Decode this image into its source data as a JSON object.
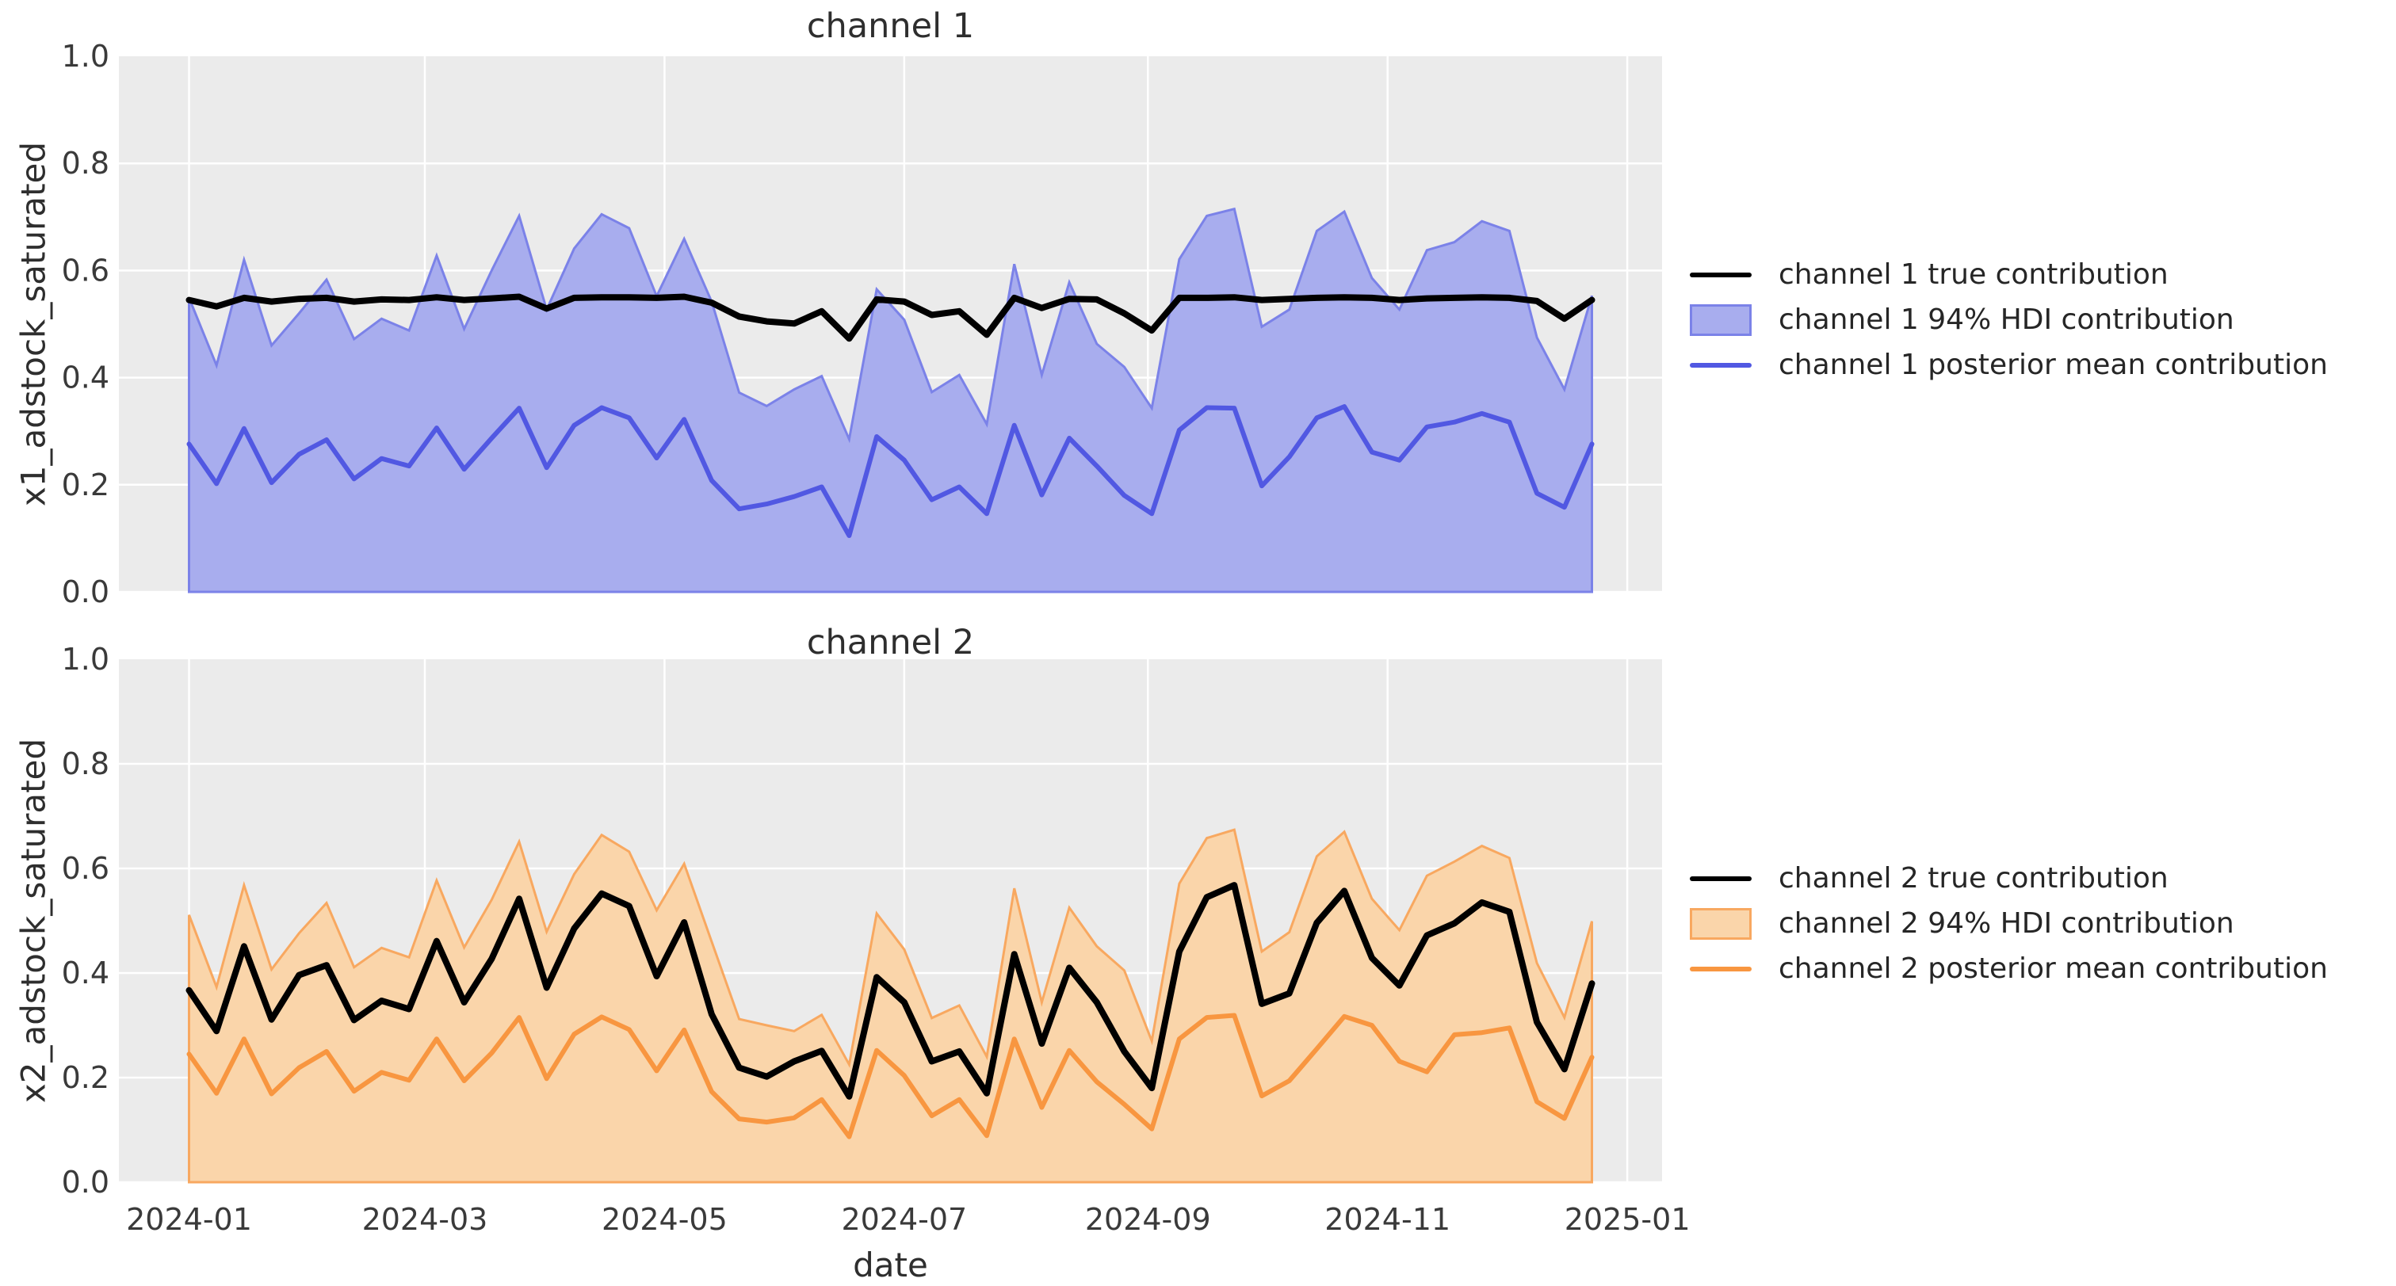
{
  "style": {
    "figure_bg": "#ffffff",
    "plot_bg": "#ebebeb",
    "grid_color": "#ffffff",
    "title_color": "#2e2e2e",
    "tick_label_color": "#3a3a3a",
    "true_line_color": "#000000",
    "ch1_line_color": "#5158e2",
    "ch1_fill_color": "#a8adee",
    "ch1_edge_color": "#7b82e8",
    "ch2_line_color": "#f89640",
    "ch2_fill_color": "#fad5aa",
    "ch2_edge_color": "#f8a860"
  },
  "xlabel": "date",
  "chart_data": [
    {
      "type": "line",
      "title": "channel 1",
      "xlabel": "date",
      "ylabel": "x1_adstock_saturated",
      "ylim": [
        0.0,
        1.0
      ],
      "grid": true,
      "legend_position": "center right outside",
      "y_ticks": [
        "0.0",
        "0.2",
        "0.4",
        "0.6",
        "0.8",
        "1.0"
      ],
      "x_tick_labels": [
        "2024-01",
        "2024-03",
        "2024-05",
        "2024-07",
        "2024-09",
        "2024-11",
        "2025-01"
      ],
      "x_tick_days": [
        0,
        60,
        121,
        182,
        244,
        305,
        366
      ],
      "show_x_tick_labels": false,
      "x": [
        "2024-01-01",
        "2024-01-08",
        "2024-01-15",
        "2024-01-22",
        "2024-01-29",
        "2024-02-05",
        "2024-02-12",
        "2024-02-19",
        "2024-02-26",
        "2024-03-04",
        "2024-03-11",
        "2024-03-18",
        "2024-03-25",
        "2024-04-01",
        "2024-04-08",
        "2024-04-15",
        "2024-04-22",
        "2024-04-29",
        "2024-05-06",
        "2024-05-13",
        "2024-05-20",
        "2024-05-27",
        "2024-06-03",
        "2024-06-10",
        "2024-06-17",
        "2024-06-24",
        "2024-07-01",
        "2024-07-08",
        "2024-07-15",
        "2024-07-22",
        "2024-07-29",
        "2024-08-05",
        "2024-08-12",
        "2024-08-19",
        "2024-08-26",
        "2024-09-02",
        "2024-09-09",
        "2024-09-16",
        "2024-09-23",
        "2024-09-30",
        "2024-10-07",
        "2024-10-14",
        "2024-10-21",
        "2024-10-28",
        "2024-11-04",
        "2024-11-11",
        "2024-11-18",
        "2024-11-25",
        "2024-12-02",
        "2024-12-09",
        "2024-12-16",
        "2024-12-23"
      ],
      "series": [
        {
          "name": "channel 1 true contribution",
          "kind": "line",
          "color": "#000000",
          "width": 8,
          "values": [
            0.545,
            0.533,
            0.549,
            0.542,
            0.547,
            0.549,
            0.542,
            0.546,
            0.545,
            0.55,
            0.545,
            0.548,
            0.551,
            0.529,
            0.549,
            0.55,
            0.55,
            0.549,
            0.551,
            0.54,
            0.514,
            0.505,
            0.501,
            0.524,
            0.473,
            0.546,
            0.542,
            0.517,
            0.524,
            0.48,
            0.549,
            0.53,
            0.547,
            0.546,
            0.52,
            0.488,
            0.549,
            0.549,
            0.55,
            0.545,
            0.547,
            0.549,
            0.55,
            0.549,
            0.545,
            0.548,
            0.549,
            0.55,
            0.549,
            0.543,
            0.51,
            0.545
          ]
        },
        {
          "name": "channel 1 94% HDI contribution",
          "kind": "band",
          "fill_color": "#a8adee",
          "edge_color": "#7b82e8",
          "lower_constant": 0.0,
          "upper": [
            0.549,
            0.423,
            0.62,
            0.46,
            0.52,
            0.583,
            0.472,
            0.51,
            0.488,
            0.628,
            0.491,
            0.6,
            0.702,
            0.527,
            0.641,
            0.705,
            0.679,
            0.552,
            0.659,
            0.542,
            0.372,
            0.347,
            0.378,
            0.403,
            0.285,
            0.565,
            0.508,
            0.373,
            0.405,
            0.313,
            0.612,
            0.405,
            0.578,
            0.463,
            0.42,
            0.343,
            0.621,
            0.702,
            0.715,
            0.495,
            0.527,
            0.674,
            0.71,
            0.586,
            0.527,
            0.638,
            0.653,
            0.692,
            0.674,
            0.475,
            0.378,
            0.553
          ]
        },
        {
          "name": "channel 1 posterior mean contribution",
          "kind": "line",
          "color": "#5158e2",
          "width": 6,
          "values": [
            0.276,
            0.202,
            0.305,
            0.204,
            0.257,
            0.284,
            0.211,
            0.249,
            0.235,
            0.306,
            0.229,
            0.287,
            0.343,
            0.232,
            0.311,
            0.344,
            0.325,
            0.25,
            0.322,
            0.208,
            0.155,
            0.164,
            0.178,
            0.196,
            0.105,
            0.29,
            0.246,
            0.172,
            0.196,
            0.146,
            0.311,
            0.181,
            0.287,
            0.235,
            0.18,
            0.146,
            0.302,
            0.344,
            0.343,
            0.198,
            0.252,
            0.325,
            0.346,
            0.261,
            0.246,
            0.308,
            0.317,
            0.333,
            0.317,
            0.184,
            0.158,
            0.276
          ]
        }
      ]
    },
    {
      "type": "line",
      "title": "channel 2",
      "xlabel": "date",
      "ylabel": "x2_adstock_saturated",
      "ylim": [
        0.0,
        1.0
      ],
      "grid": true,
      "legend_position": "center right outside",
      "y_ticks": [
        "0.0",
        "0.2",
        "0.4",
        "0.6",
        "0.8",
        "1.0"
      ],
      "x_tick_labels": [
        "2024-01",
        "2024-03",
        "2024-05",
        "2024-07",
        "2024-09",
        "2024-11",
        "2025-01"
      ],
      "x_tick_days": [
        0,
        60,
        121,
        182,
        244,
        305,
        366
      ],
      "show_x_tick_labels": true,
      "x": [
        "2024-01-01",
        "2024-01-08",
        "2024-01-15",
        "2024-01-22",
        "2024-01-29",
        "2024-02-05",
        "2024-02-12",
        "2024-02-19",
        "2024-02-26",
        "2024-03-04",
        "2024-03-11",
        "2024-03-18",
        "2024-03-25",
        "2024-04-01",
        "2024-04-08",
        "2024-04-15",
        "2024-04-22",
        "2024-04-29",
        "2024-05-06",
        "2024-05-13",
        "2024-05-20",
        "2024-05-27",
        "2024-06-03",
        "2024-06-10",
        "2024-06-17",
        "2024-06-24",
        "2024-07-01",
        "2024-07-08",
        "2024-07-15",
        "2024-07-22",
        "2024-07-29",
        "2024-08-05",
        "2024-08-12",
        "2024-08-19",
        "2024-08-26",
        "2024-09-02",
        "2024-09-09",
        "2024-09-16",
        "2024-09-23",
        "2024-09-30",
        "2024-10-07",
        "2024-10-14",
        "2024-10-21",
        "2024-10-28",
        "2024-11-04",
        "2024-11-11",
        "2024-11-18",
        "2024-11-25",
        "2024-12-02",
        "2024-12-09",
        "2024-12-16",
        "2024-12-23"
      ],
      "series": [
        {
          "name": "channel 2 true contribution",
          "kind": "line",
          "color": "#000000",
          "width": 8,
          "values": [
            0.367,
            0.289,
            0.451,
            0.311,
            0.396,
            0.415,
            0.31,
            0.347,
            0.331,
            0.461,
            0.344,
            0.427,
            0.542,
            0.372,
            0.485,
            0.552,
            0.528,
            0.394,
            0.497,
            0.321,
            0.219,
            0.202,
            0.231,
            0.251,
            0.164,
            0.392,
            0.344,
            0.231,
            0.25,
            0.17,
            0.436,
            0.265,
            0.41,
            0.344,
            0.25,
            0.18,
            0.441,
            0.545,
            0.568,
            0.341,
            0.361,
            0.496,
            0.557,
            0.429,
            0.376,
            0.472,
            0.495,
            0.535,
            0.517,
            0.306,
            0.216,
            0.38
          ]
        },
        {
          "name": "channel 2 94% HDI contribution",
          "kind": "band",
          "fill_color": "#fad5aa",
          "edge_color": "#f8a860",
          "lower_constant": 0.0,
          "upper": [
            0.511,
            0.373,
            0.568,
            0.407,
            0.476,
            0.534,
            0.411,
            0.448,
            0.43,
            0.577,
            0.449,
            0.54,
            0.651,
            0.479,
            0.589,
            0.664,
            0.632,
            0.52,
            0.609,
            0.46,
            0.312,
            0.3,
            0.289,
            0.32,
            0.225,
            0.514,
            0.445,
            0.314,
            0.338,
            0.24,
            0.562,
            0.344,
            0.525,
            0.451,
            0.405,
            0.27,
            0.571,
            0.658,
            0.674,
            0.441,
            0.478,
            0.623,
            0.67,
            0.542,
            0.482,
            0.586,
            0.613,
            0.643,
            0.62,
            0.419,
            0.315,
            0.499
          ]
        },
        {
          "name": "channel 2 posterior mean contribution",
          "kind": "line",
          "color": "#f89640",
          "width": 6,
          "values": [
            0.245,
            0.17,
            0.274,
            0.169,
            0.219,
            0.25,
            0.174,
            0.21,
            0.195,
            0.274,
            0.194,
            0.247,
            0.315,
            0.198,
            0.283,
            0.316,
            0.292,
            0.213,
            0.291,
            0.173,
            0.121,
            0.115,
            0.123,
            0.158,
            0.087,
            0.252,
            0.204,
            0.127,
            0.158,
            0.089,
            0.274,
            0.143,
            0.252,
            0.192,
            0.149,
            0.102,
            0.274,
            0.315,
            0.319,
            0.165,
            0.194,
            0.255,
            0.317,
            0.3,
            0.231,
            0.211,
            0.282,
            0.286,
            0.295,
            0.154,
            0.122,
            0.239
          ]
        }
      ]
    }
  ]
}
